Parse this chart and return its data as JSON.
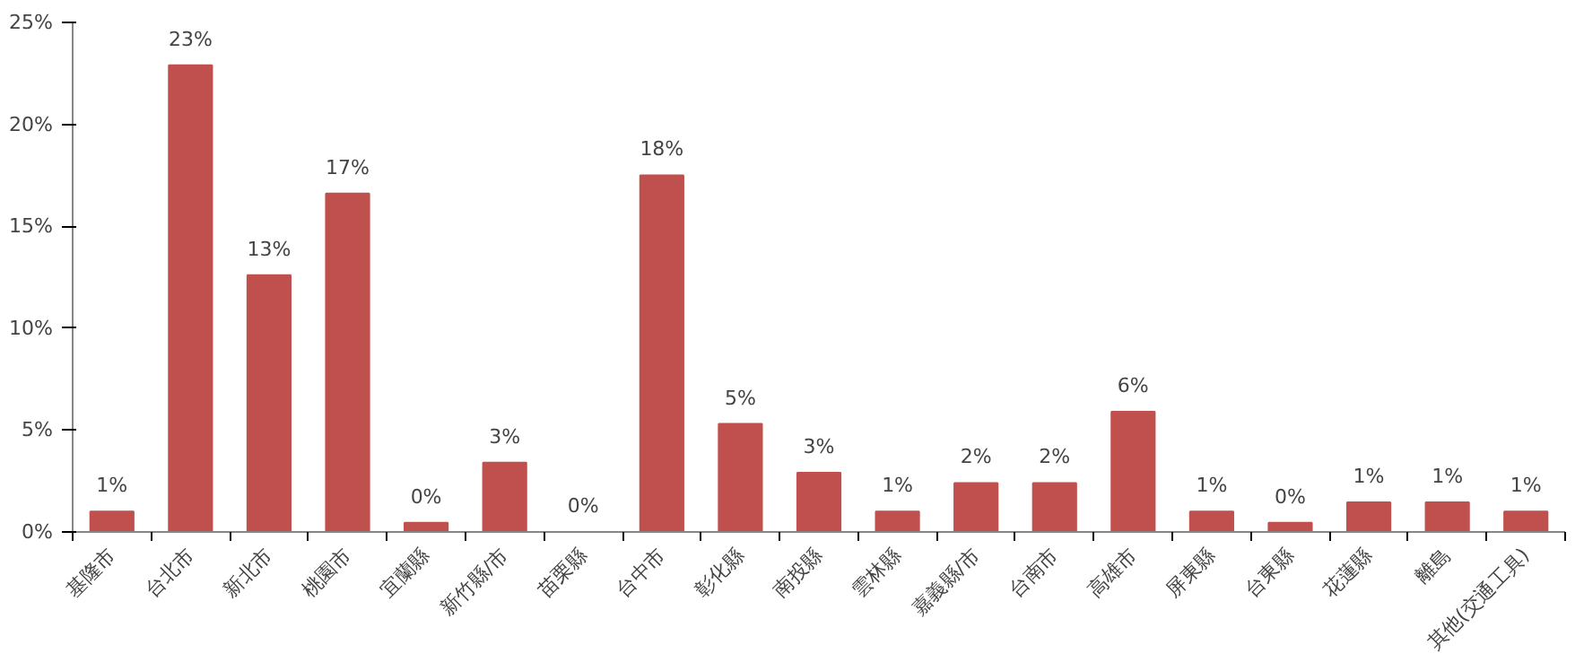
{
  "chart_data": {
    "type": "bar",
    "categories": [
      "基隆市",
      "台北市",
      "新北市",
      "桃園市",
      "宜蘭縣",
      "新竹縣/市",
      "苗栗縣",
      "台中市",
      "彰化縣",
      "南投縣",
      "雲林縣",
      "嘉義縣/市",
      "台南市",
      "高雄市",
      "屏東縣",
      "台東縣",
      "花蓮縣",
      "離島",
      "其他(交通工具)"
    ],
    "values": [
      1.0,
      22.9,
      12.6,
      16.6,
      0.45,
      3.4,
      0.0,
      17.5,
      5.3,
      2.9,
      1.0,
      2.4,
      2.4,
      5.9,
      1.0,
      0.45,
      1.45,
      1.45,
      1.0
    ],
    "value_labels": [
      "1%",
      "23%",
      "13%",
      "17%",
      "0%",
      "3%",
      "0%",
      "18%",
      "5%",
      "3%",
      "1%",
      "2%",
      "2%",
      "6%",
      "1%",
      "0%",
      "1%",
      "1%",
      "1%"
    ],
    "color": "#c0504d",
    "ylim": [
      0,
      25
    ],
    "yticks": [
      {
        "value": 0,
        "label": "0%"
      },
      {
        "value": 5,
        "label": "5%"
      },
      {
        "value": 10,
        "label": "10%"
      },
      {
        "value": 15,
        "label": "15%"
      },
      {
        "value": 20,
        "label": "20%"
      },
      {
        "value": 25,
        "label": "25%"
      }
    ],
    "grid": false
  }
}
